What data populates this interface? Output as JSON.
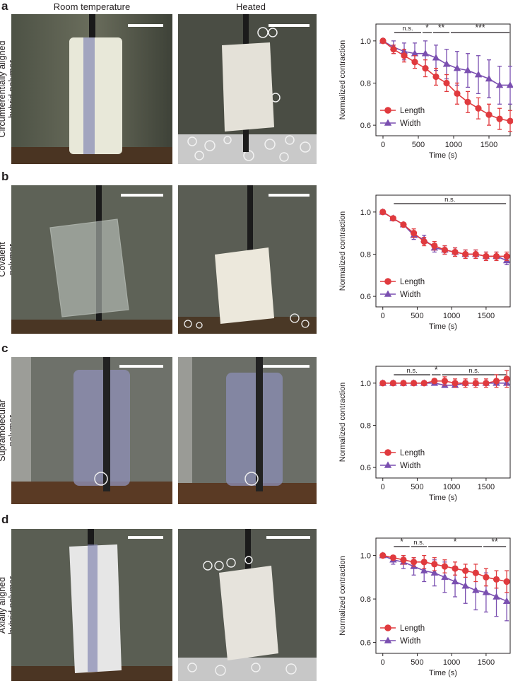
{
  "columns": {
    "room": "Room temperature",
    "heated": "Heated"
  },
  "rows": [
    {
      "letter": "a",
      "label_lines": [
        "Circumferentially aligned",
        "hybrid polymer"
      ]
    },
    {
      "letter": "b",
      "label_lines": [
        "Covalent",
        "polymer"
      ]
    },
    {
      "letter": "c",
      "label_lines": [
        "Supramolecular",
        "polymer"
      ]
    },
    {
      "letter": "d",
      "label_lines": [
        "Axially aligned",
        "hybrid polymer"
      ]
    }
  ],
  "colors": {
    "length": "#e03a3e",
    "width": "#7a4fb0",
    "axis": "#231f20"
  },
  "chart_data": [
    {
      "type": "line",
      "panel": "a",
      "xlabel": "Time (s)",
      "ylabel": "Normalized contraction",
      "xlim": [
        -100,
        1800
      ],
      "ylim": [
        0.55,
        1.08
      ],
      "xticks": [
        0,
        500,
        1000,
        1500
      ],
      "yticks": [
        0.6,
        0.8,
        1.0
      ],
      "x": [
        0,
        150,
        300,
        450,
        600,
        750,
        900,
        1050,
        1200,
        1350,
        1500,
        1650,
        1800
      ],
      "series": [
        {
          "name": "Length",
          "marker": "circle",
          "values": [
            1.0,
            0.96,
            0.93,
            0.9,
            0.87,
            0.83,
            0.8,
            0.75,
            0.71,
            0.68,
            0.65,
            0.63,
            0.62
          ],
          "errors": [
            0.01,
            0.02,
            0.03,
            0.03,
            0.04,
            0.04,
            0.04,
            0.05,
            0.05,
            0.05,
            0.05,
            0.05,
            0.05
          ]
        },
        {
          "name": "Width",
          "marker": "triangle",
          "values": [
            1.0,
            0.97,
            0.95,
            0.94,
            0.94,
            0.92,
            0.89,
            0.87,
            0.86,
            0.84,
            0.82,
            0.79,
            0.79
          ],
          "errors": [
            0.01,
            0.03,
            0.04,
            0.05,
            0.06,
            0.06,
            0.07,
            0.08,
            0.08,
            0.09,
            0.09,
            0.09,
            0.09
          ]
        }
      ],
      "legend": [
        "Length",
        "Width"
      ],
      "legend_position": "bottom-left",
      "significance": [
        {
          "from": 150,
          "to": 550,
          "label": "n.s."
        },
        {
          "from": 550,
          "to": 700,
          "label": "*"
        },
        {
          "from": 700,
          "to": 950,
          "label": "**"
        },
        {
          "from": 950,
          "to": 1800,
          "label": "***"
        }
      ]
    },
    {
      "type": "line",
      "panel": "b",
      "xlabel": "Time (s)",
      "ylabel": "Normalized contraction",
      "xlim": [
        -100,
        1850
      ],
      "ylim": [
        0.55,
        1.08
      ],
      "xticks": [
        0,
        500,
        1000,
        1500
      ],
      "yticks": [
        0.6,
        0.8,
        1.0
      ],
      "x": [
        0,
        150,
        300,
        450,
        600,
        750,
        900,
        1050,
        1200,
        1350,
        1500,
        1650,
        1800
      ],
      "series": [
        {
          "name": "Length",
          "marker": "circle",
          "values": [
            1.0,
            0.97,
            0.94,
            0.9,
            0.86,
            0.84,
            0.82,
            0.81,
            0.8,
            0.8,
            0.79,
            0.79,
            0.79
          ],
          "errors": [
            0.01,
            0.01,
            0.01,
            0.02,
            0.02,
            0.02,
            0.02,
            0.02,
            0.02,
            0.02,
            0.02,
            0.02,
            0.02
          ]
        },
        {
          "name": "Width",
          "marker": "triangle",
          "values": [
            1.0,
            0.97,
            0.94,
            0.89,
            0.87,
            0.83,
            0.82,
            0.81,
            0.8,
            0.8,
            0.79,
            0.79,
            0.77
          ],
          "errors": [
            0.01,
            0.01,
            0.01,
            0.02,
            0.02,
            0.02,
            0.02,
            0.02,
            0.02,
            0.02,
            0.02,
            0.02,
            0.02
          ]
        }
      ],
      "legend": [
        "Length",
        "Width"
      ],
      "legend_position": "bottom-left",
      "significance": [
        {
          "from": 150,
          "to": 1800,
          "label": "n.s."
        }
      ]
    },
    {
      "type": "line",
      "panel": "c",
      "xlabel": "Time (s)",
      "ylabel": "Normalized contraction",
      "xlim": [
        -100,
        1850
      ],
      "ylim": [
        0.55,
        1.08
      ],
      "xticks": [
        0,
        500,
        1000,
        1500
      ],
      "yticks": [
        0.6,
        0.8,
        1.0
      ],
      "x": [
        0,
        150,
        300,
        450,
        600,
        750,
        900,
        1050,
        1200,
        1350,
        1500,
        1650,
        1800
      ],
      "series": [
        {
          "name": "Length",
          "marker": "circle",
          "values": [
            1.0,
            1.0,
            1.0,
            1.0,
            1.0,
            1.01,
            1.01,
            1.0,
            1.0,
            1.0,
            1.0,
            1.01,
            1.02
          ],
          "errors": [
            0.01,
            0.01,
            0.01,
            0.01,
            0.01,
            0.01,
            0.02,
            0.02,
            0.02,
            0.02,
            0.02,
            0.03,
            0.04
          ]
        },
        {
          "name": "Width",
          "marker": "triangle",
          "values": [
            1.0,
            1.0,
            1.0,
            1.0,
            1.0,
            1.0,
            0.99,
            0.99,
            1.0,
            1.0,
            1.0,
            1.0,
            1.0
          ],
          "errors": [
            0.01,
            0.01,
            0.01,
            0.01,
            0.01,
            0.01,
            0.01,
            0.01,
            0.01,
            0.01,
            0.01,
            0.01,
            0.01
          ]
        }
      ],
      "legend": [
        "Length",
        "Width"
      ],
      "legend_position": "bottom-left",
      "significance": [
        {
          "from": 150,
          "to": 700,
          "label": "n.s."
        },
        {
          "from": 700,
          "to": 850,
          "label": "*"
        },
        {
          "from": 850,
          "to": 1800,
          "label": "n.s."
        }
      ]
    },
    {
      "type": "line",
      "panel": "d",
      "xlabel": "Time (s)",
      "ylabel": "Normalized contraction",
      "xlim": [
        -100,
        1850
      ],
      "ylim": [
        0.55,
        1.08
      ],
      "xticks": [
        0,
        500,
        1000,
        1500
      ],
      "yticks": [
        0.6,
        0.8,
        1.0
      ],
      "x": [
        0,
        150,
        300,
        450,
        600,
        750,
        900,
        1050,
        1200,
        1350,
        1500,
        1650,
        1800
      ],
      "series": [
        {
          "name": "Length",
          "marker": "circle",
          "values": [
            1.0,
            0.99,
            0.98,
            0.97,
            0.97,
            0.96,
            0.95,
            0.94,
            0.93,
            0.92,
            0.9,
            0.89,
            0.88
          ],
          "errors": [
            0.01,
            0.01,
            0.02,
            0.02,
            0.03,
            0.03,
            0.03,
            0.03,
            0.03,
            0.04,
            0.04,
            0.04,
            0.05
          ]
        },
        {
          "name": "Width",
          "marker": "triangle",
          "values": [
            1.0,
            0.98,
            0.97,
            0.95,
            0.93,
            0.92,
            0.9,
            0.88,
            0.86,
            0.84,
            0.83,
            0.81,
            0.79
          ],
          "errors": [
            0.01,
            0.02,
            0.03,
            0.04,
            0.05,
            0.06,
            0.07,
            0.07,
            0.08,
            0.09,
            0.09,
            0.09,
            0.09
          ]
        }
      ],
      "legend": [
        "Length",
        "Width"
      ],
      "legend_position": "bottom-left",
      "significance": [
        {
          "from": 150,
          "to": 400,
          "label": "*"
        },
        {
          "from": 400,
          "to": 650,
          "label": "n.s."
        },
        {
          "from": 650,
          "to": 1450,
          "label": "*"
        },
        {
          "from": 1450,
          "to": 1800,
          "label": "**"
        }
      ]
    }
  ]
}
